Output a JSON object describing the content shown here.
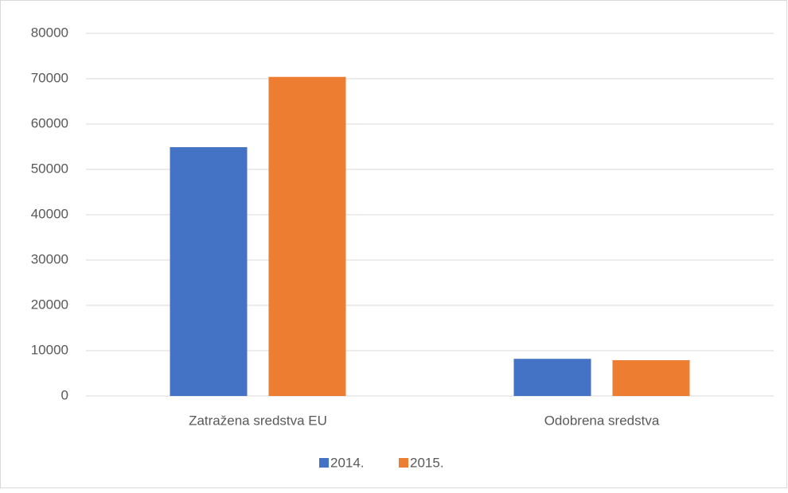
{
  "chart_data": {
    "type": "bar",
    "categories": [
      "Zatražena sredstva EU",
      "Odobrena sredstva"
    ],
    "series": [
      {
        "name": "2014.",
        "color": "#4472c4",
        "values": [
          54900,
          8200
        ]
      },
      {
        "name": "2015.",
        "color": "#ed7d31",
        "values": [
          70400,
          7900
        ]
      }
    ],
    "ylim": [
      0,
      80000
    ],
    "yticks": [
      0,
      10000,
      20000,
      30000,
      40000,
      50000,
      60000,
      70000,
      80000
    ],
    "grid": true,
    "legend": "bottom"
  }
}
